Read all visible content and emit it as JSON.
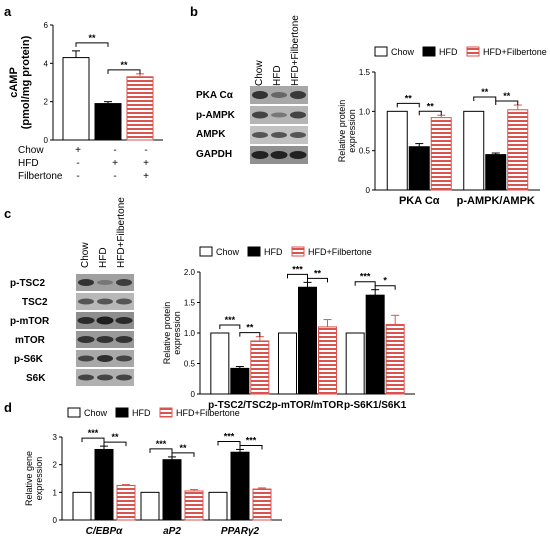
{
  "panel_letters": [
    "a",
    "b",
    "c",
    "d"
  ],
  "colors": {
    "chow": "#ffffff",
    "hfd": "#000000",
    "filbertone_stripe": "#d9534f",
    "filbertone_bg": "#ffffff",
    "axis": "#000000",
    "blot_bg": "#9a9a9a"
  },
  "legend": [
    "Chow",
    "HFD",
    "HFD+Filbertone"
  ],
  "panel_a": {
    "treatment_rows": [
      {
        "label": "Chow",
        "signs": [
          "+",
          "-",
          "-"
        ]
      },
      {
        "label": "HFD",
        "signs": [
          "-",
          "+",
          "+"
        ]
      },
      {
        "label": "Filbertone",
        "signs": [
          "-",
          "-",
          "+"
        ]
      }
    ]
  },
  "panel_b": {
    "lane_labels": [
      "Chow",
      "HFD",
      "HFD+Filbertone"
    ],
    "blot_labels": [
      "PKA Cα",
      "p-AMPK",
      "AMPK",
      "GAPDH"
    ]
  },
  "panel_c": {
    "lane_labels": [
      "Chow",
      "HFD",
      "HFD+Filbertone"
    ],
    "blot_labels": [
      "p-TSC2",
      "TSC2",
      "p-mTOR",
      "mTOR",
      "p-S6K",
      "S6K"
    ]
  },
  "chart_data": [
    {
      "id": "a",
      "type": "bar",
      "ylabel": "cAMP (pmol/mg protein)",
      "categories": [
        ""
      ],
      "series": [
        {
          "name": "Chow",
          "values": [
            4.3
          ],
          "errors": [
            0.35
          ]
        },
        {
          "name": "HFD",
          "values": [
            1.9
          ],
          "errors": [
            0.1
          ]
        },
        {
          "name": "HFD+Filbertone",
          "values": [
            3.3
          ],
          "errors": [
            0.15
          ]
        }
      ],
      "ylim": [
        0,
        6
      ],
      "yticks": [
        0,
        2,
        4,
        6
      ],
      "significance": [
        {
          "category": 0,
          "from": 0,
          "to": 1,
          "text": "**"
        },
        {
          "category": 0,
          "from": 1,
          "to": 2,
          "text": "**"
        }
      ]
    },
    {
      "id": "b",
      "type": "bar",
      "ylabel": "Relative protein expression",
      "categories": [
        "PKA Cα",
        "p-AMPK/AMPK"
      ],
      "series": [
        {
          "name": "Chow",
          "values": [
            1.0,
            1.0
          ],
          "errors": [
            0,
            0
          ]
        },
        {
          "name": "HFD",
          "values": [
            0.55,
            0.45
          ],
          "errors": [
            0.04,
            0.02
          ]
        },
        {
          "name": "HFD+Filbertone",
          "values": [
            0.92,
            1.02
          ],
          "errors": [
            0.03,
            0.06
          ]
        }
      ],
      "ylim": [
        0,
        1.5
      ],
      "yticks": [
        0,
        0.5,
        1.0,
        1.5
      ],
      "ytick_labels": [
        "0",
        "0.5",
        "1.0",
        "1.5"
      ],
      "significance": [
        {
          "category": 0,
          "from": 0,
          "to": 1,
          "text": "**"
        },
        {
          "category": 0,
          "from": 1,
          "to": 2,
          "text": "**"
        },
        {
          "category": 1,
          "from": 0,
          "to": 1,
          "text": "**"
        },
        {
          "category": 1,
          "from": 1,
          "to": 2,
          "text": "**"
        }
      ]
    },
    {
      "id": "c",
      "type": "bar",
      "ylabel": "Relative protein expression",
      "categories": [
        "p-TSC2/TSC2",
        "p-mTOR/mTOR",
        "p-S6K1/S6K1"
      ],
      "series": [
        {
          "name": "Chow",
          "values": [
            1.0,
            1.0,
            1.0
          ],
          "errors": [
            0,
            0,
            0
          ]
        },
        {
          "name": "HFD",
          "values": [
            0.42,
            1.75,
            1.62
          ],
          "errors": [
            0.03,
            0.08,
            0.09
          ]
        },
        {
          "name": "HFD+Filbertone",
          "values": [
            0.87,
            1.1,
            1.14
          ],
          "errors": [
            0.07,
            0.12,
            0.15
          ]
        }
      ],
      "ylim": [
        0,
        2.0
      ],
      "yticks": [
        0,
        0.5,
        1.0,
        1.5,
        2.0
      ],
      "ytick_labels": [
        "0",
        "0.5",
        "1.0",
        "1.5",
        "2.0"
      ],
      "significance": [
        {
          "category": 0,
          "from": 0,
          "to": 1,
          "text": "***"
        },
        {
          "category": 0,
          "from": 1,
          "to": 2,
          "text": "**"
        },
        {
          "category": 1,
          "from": 0,
          "to": 1,
          "text": "***"
        },
        {
          "category": 1,
          "from": 1,
          "to": 2,
          "text": "**"
        },
        {
          "category": 2,
          "from": 0,
          "to": 1,
          "text": "***"
        },
        {
          "category": 2,
          "from": 1,
          "to": 2,
          "text": "*"
        }
      ]
    },
    {
      "id": "d",
      "type": "bar",
      "ylabel": "Relative gene expression",
      "categories": [
        "C/EBPα",
        "aP2",
        "PPARγ2"
      ],
      "italic_categories": true,
      "series": [
        {
          "name": "Chow",
          "values": [
            1.0,
            1.0,
            1.0
          ],
          "errors": [
            0,
            0,
            0
          ]
        },
        {
          "name": "HFD",
          "values": [
            2.55,
            2.18,
            2.45
          ],
          "errors": [
            0.12,
            0.1,
            0.1
          ]
        },
        {
          "name": "HFD+Filbertone",
          "values": [
            1.25,
            1.05,
            1.12
          ],
          "errors": [
            0.03,
            0.05,
            0.04
          ]
        }
      ],
      "ylim": [
        0,
        3
      ],
      "yticks": [
        0,
        1,
        2,
        3
      ],
      "significance": [
        {
          "category": 0,
          "from": 0,
          "to": 1,
          "text": "***"
        },
        {
          "category": 0,
          "from": 1,
          "to": 2,
          "text": "**"
        },
        {
          "category": 1,
          "from": 0,
          "to": 1,
          "text": "***"
        },
        {
          "category": 1,
          "from": 1,
          "to": 2,
          "text": "**"
        },
        {
          "category": 2,
          "from": 0,
          "to": 1,
          "text": "***"
        },
        {
          "category": 2,
          "from": 1,
          "to": 2,
          "text": "***"
        }
      ]
    }
  ]
}
